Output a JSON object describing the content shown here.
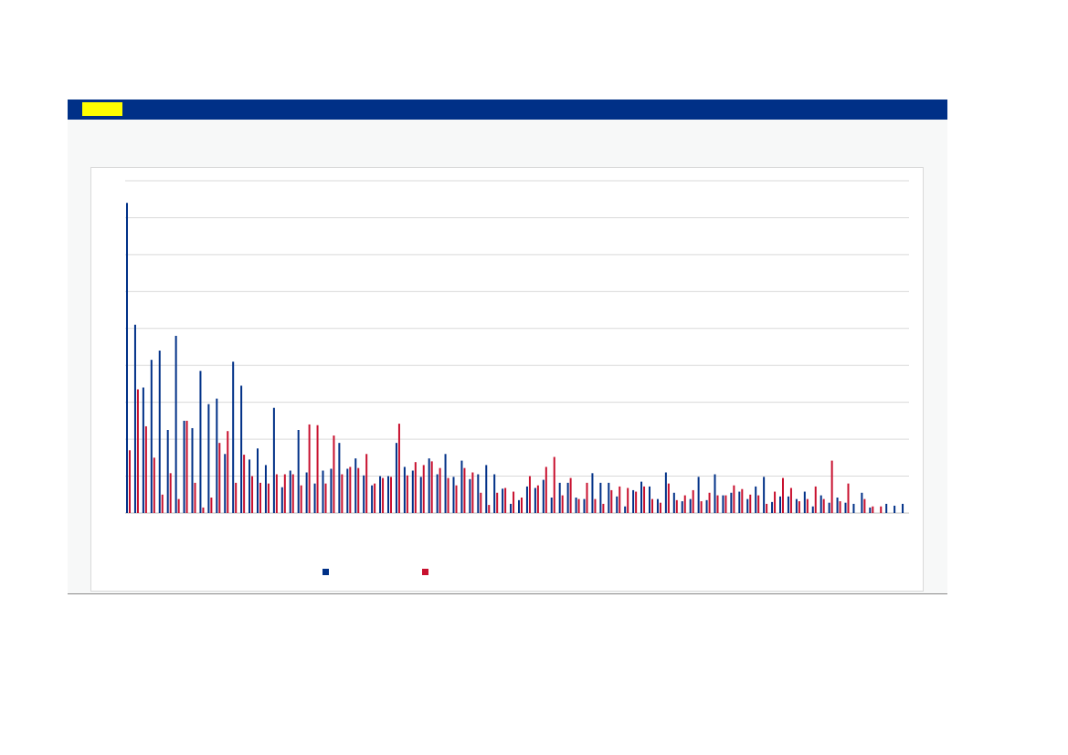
{
  "header": {
    "tag_color": "#ffff00",
    "bar_color": "#003087"
  },
  "chart_data": {
    "type": "bar",
    "title": "",
    "xlabel": "",
    "ylabel": "",
    "grid": true,
    "legend_position": "bottom",
    "ylim": [
      0,
      9
    ],
    "series": [
      {
        "color": "#003087",
        "values": [
          8.4,
          5.1,
          3.4,
          4.15,
          4.4,
          2.25,
          4.8,
          2.5,
          2.3,
          3.85,
          2.95,
          3.1,
          1.6,
          4.1,
          3.45,
          1.45,
          1.75,
          1.3,
          2.85,
          0.7,
          1.15,
          2.25,
          1.1,
          0.8,
          1.15,
          1.2,
          1.9,
          1.2,
          1.48,
          1.02,
          0.75,
          1.0,
          1.0,
          1.9,
          1.25,
          1.15,
          0.98,
          1.48,
          1.05,
          1.6,
          0.98,
          1.42,
          0.92,
          1.05,
          1.3,
          1.05,
          0.66,
          0.25,
          0.35,
          0.72,
          0.68,
          0.9,
          0.42,
          0.82,
          0.82,
          0.42,
          0.38,
          1.08,
          0.82,
          0.82,
          0.45,
          0.18,
          0.62,
          0.85,
          0.72,
          0.38,
          1.1,
          0.55,
          0.32,
          0.38,
          0.98,
          0.35,
          1.05,
          0.48,
          0.55,
          0.58,
          0.38,
          0.72,
          0.98,
          0.3,
          0.45,
          0.45,
          0.38,
          0.58,
          0.18,
          0.48,
          0.28,
          0.42,
          0.28,
          0.25,
          0.55,
          0.15,
          0.0,
          0.25,
          0.2,
          0.25
        ]
      },
      {
        "color": "#c8102e",
        "values": [
          1.7,
          3.35,
          2.35,
          1.5,
          0.5,
          1.08,
          0.38,
          2.5,
          0.82,
          0.15,
          0.42,
          1.9,
          2.22,
          0.82,
          1.58,
          1.0,
          0.82,
          0.8,
          1.05,
          1.05,
          1.05,
          0.75,
          2.4,
          2.38,
          0.8,
          2.1,
          1.05,
          1.25,
          1.22,
          1.6,
          0.8,
          0.95,
          0.98,
          2.42,
          1.02,
          1.38,
          1.3,
          1.4,
          1.22,
          0.95,
          0.75,
          1.22,
          1.1,
          0.55,
          0.22,
          0.55,
          0.68,
          0.58,
          0.42,
          1.0,
          0.75,
          1.25,
          1.52,
          0.48,
          0.95,
          0.38,
          0.82,
          0.38,
          0.25,
          0.62,
          0.72,
          0.68,
          0.58,
          0.72,
          0.38,
          0.28,
          0.8,
          0.35,
          0.48,
          0.62,
          0.32,
          0.55,
          0.48,
          0.48,
          0.75,
          0.65,
          0.5,
          0.48,
          0.25,
          0.58,
          0.95,
          0.68,
          0.32,
          0.38,
          0.72,
          0.38,
          1.42,
          0.32,
          0.8,
          0.0,
          0.38,
          0.18,
          0.18,
          0.0,
          0.0,
          0.0
        ]
      }
    ]
  }
}
